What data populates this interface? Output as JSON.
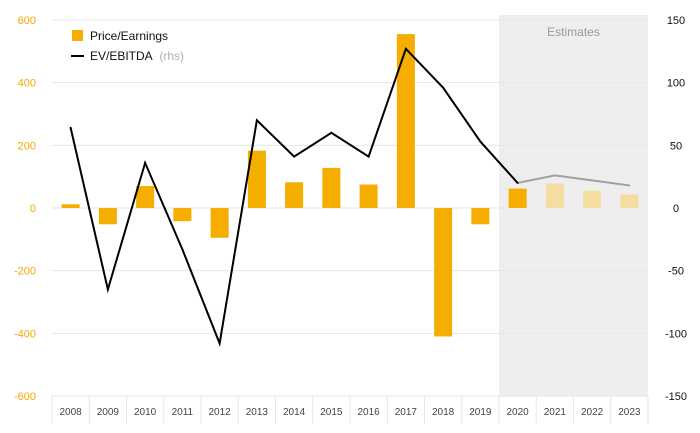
{
  "chart_data": {
    "type": "bar",
    "categories": [
      "2008",
      "2009",
      "2010",
      "2011",
      "2012",
      "2013",
      "2014",
      "2015",
      "2016",
      "2017",
      "2018",
      "2019",
      "2020",
      "2021",
      "2022",
      "2023"
    ],
    "series": [
      {
        "name": "Price/Earnings",
        "type": "bar",
        "axis": "left",
        "values": [
          12,
          -52,
          70,
          -42,
          -95,
          183,
          82,
          128,
          75,
          555,
          -410,
          -52,
          62,
          78,
          55,
          43
        ],
        "estimated": [
          false,
          false,
          false,
          false,
          false,
          false,
          false,
          false,
          false,
          false,
          false,
          false,
          false,
          true,
          true,
          true
        ]
      },
      {
        "name": "EV/EBITDA",
        "name_suffix": "(rhs)",
        "type": "line",
        "axis": "right",
        "values": [
          64,
          -65,
          36,
          -33,
          -108,
          70,
          41,
          60,
          41,
          127,
          96,
          53,
          20,
          26,
          22,
          18
        ],
        "estimated": [
          false,
          false,
          false,
          false,
          false,
          false,
          false,
          false,
          false,
          false,
          false,
          false,
          false,
          true,
          true,
          true
        ]
      }
    ],
    "y_left": {
      "ylim": [
        -600,
        600
      ],
      "ticks": [
        600,
        400,
        200,
        0,
        -200,
        -400,
        -600
      ]
    },
    "y_right": {
      "ylim": [
        -150,
        150
      ],
      "ticks": [
        150,
        100,
        50,
        0,
        -50,
        -100,
        -150
      ]
    },
    "shaded_region": {
      "label": "Estimates",
      "from": "2020",
      "to": "2023"
    },
    "grid": true,
    "legend_placement": "top-left",
    "colors": {
      "bar": "#f5ae00",
      "bar_estimate": "#f5dca0",
      "line": "#000000",
      "line_estimate": "#a0a0a0",
      "shade": "#eeeeee",
      "left_axis_text": "#f5a800"
    }
  }
}
